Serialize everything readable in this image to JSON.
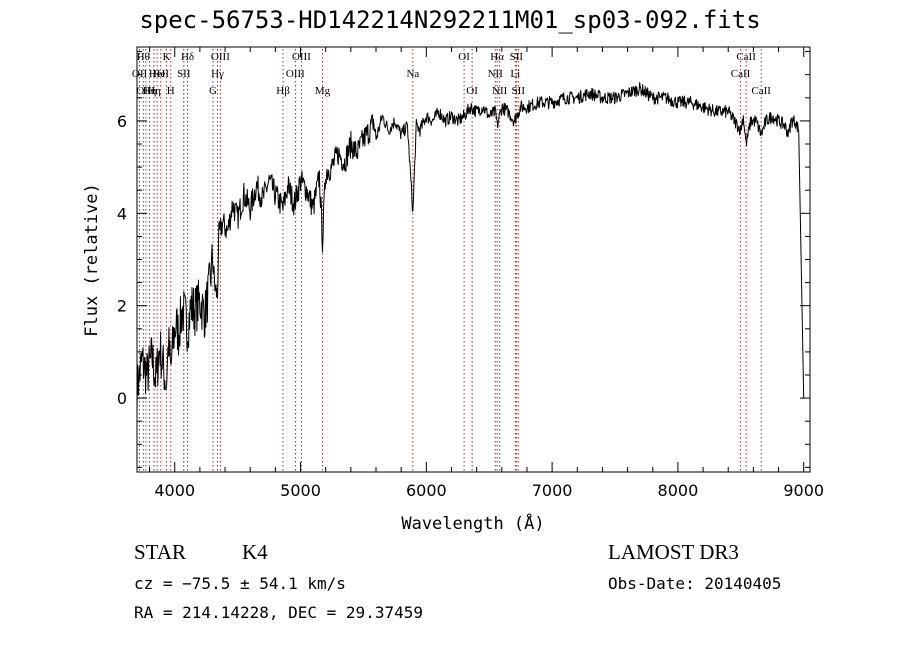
{
  "chart_data": {
    "type": "line",
    "title": "spec-56753-HD142214N292211M01_sp03-092.fits",
    "xlabel": "Wavelength (Å)",
    "ylabel": "Flux (relative)",
    "xlim": [
      3700,
      9050
    ],
    "ylim": [
      -1.6,
      7.6
    ],
    "xticks": [
      4000,
      5000,
      6000,
      7000,
      8000,
      9000
    ],
    "yticks": [
      0,
      2,
      4,
      6
    ],
    "grid": false,
    "series": [
      {
        "name": "spectrum",
        "x": [
          3700,
          3740,
          3780,
          3820,
          3850,
          3880,
          3900,
          3933,
          3950,
          3968,
          3990,
          4010,
          4030,
          4060,
          4080,
          4102,
          4130,
          4160,
          4200,
          4240,
          4280,
          4300,
          4320,
          4340,
          4350,
          4380,
          4420,
          4460,
          4500,
          4550,
          4600,
          4650,
          4700,
          4750,
          4800,
          4861,
          4900,
          4950,
          5000,
          5050,
          5100,
          5150,
          5175,
          5200,
          5250,
          5300,
          5350,
          5400,
          5450,
          5500,
          5550,
          5580,
          5600,
          5650,
          5700,
          5750,
          5800,
          5850,
          5893,
          5920,
          5950,
          6000,
          6050,
          6100,
          6150,
          6200,
          6250,
          6300,
          6350,
          6400,
          6450,
          6500,
          6550,
          6563,
          6600,
          6650,
          6700,
          6750,
          6800,
          6900,
          7000,
          7100,
          7200,
          7300,
          7400,
          7500,
          7600,
          7700,
          7800,
          7900,
          8000,
          8100,
          8200,
          8300,
          8400,
          8450,
          8498,
          8520,
          8542,
          8580,
          8620,
          8662,
          8700,
          8750,
          8800,
          8850,
          8880,
          8900,
          8930,
          8960,
          9000
        ],
        "values": [
          0.2,
          0.8,
          0.5,
          0.9,
          0.4,
          1.1,
          0.8,
          0.3,
          1.2,
          0.6,
          1.3,
          1.6,
          1.4,
          1.9,
          1.8,
          1.5,
          2.0,
          1.9,
          2.1,
          1.8,
          2.5,
          3.0,
          2.4,
          2.2,
          3.5,
          3.8,
          3.6,
          4.2,
          3.9,
          4.4,
          4.1,
          4.6,
          4.3,
          4.7,
          4.4,
          4.1,
          4.6,
          4.2,
          4.7,
          4.5,
          4.1,
          4.8,
          3.4,
          4.9,
          5.0,
          5.3,
          5.1,
          5.5,
          5.3,
          5.6,
          5.8,
          6.0,
          5.6,
          6.1,
          5.8,
          6.0,
          5.7,
          5.9,
          4.0,
          5.9,
          5.8,
          6.1,
          6.0,
          6.2,
          6.0,
          6.1,
          6.0,
          6.1,
          6.3,
          6.2,
          6.3,
          6.1,
          6.2,
          5.9,
          6.3,
          6.2,
          6.0,
          6.3,
          6.3,
          6.4,
          6.4,
          6.5,
          6.5,
          6.6,
          6.5,
          6.5,
          6.6,
          6.7,
          6.5,
          6.5,
          6.4,
          6.4,
          6.3,
          6.2,
          6.2,
          6.0,
          5.8,
          6.1,
          5.5,
          6.0,
          6.0,
          5.7,
          6.0,
          6.1,
          6.0,
          5.9,
          5.7,
          6.0,
          6.0,
          5.8,
          0.0
        ]
      }
    ],
    "lines": [
      {
        "x": 3720,
        "label": "OII",
        "row": 2
      },
      {
        "x": 3750,
        "label": "Hθ",
        "row": 1
      },
      {
        "x": 3770,
        "label": "OIII",
        "row": 3
      },
      {
        "x": 3800,
        "label": "Hη",
        "row": 3
      },
      {
        "x": 3835,
        "label": "Hη",
        "row": 3
      },
      {
        "x": 3860,
        "label": "HeI",
        "row": 2
      },
      {
        "x": 3889,
        "label": "HeI",
        "row": 2
      },
      {
        "x": 3934,
        "label": "K",
        "row": 1
      },
      {
        "x": 3968,
        "label": "H",
        "row": 3
      },
      {
        "x": 4102,
        "label": "Hδ",
        "row": 1
      },
      {
        "x": 4072,
        "label": "SII",
        "row": 2
      },
      {
        "x": 4304,
        "label": "G",
        "row": 3
      },
      {
        "x": 4340,
        "label": "Hγ",
        "row": 2
      },
      {
        "x": 4363,
        "label": "OIII",
        "row": 1
      },
      {
        "x": 4861,
        "label": "Hβ",
        "row": 3
      },
      {
        "x": 4959,
        "label": "OIII",
        "row": 2
      },
      {
        "x": 5007,
        "label": "OIII",
        "row": 1
      },
      {
        "x": 5175,
        "label": "Mg",
        "row": 3
      },
      {
        "x": 5893,
        "label": "Na",
        "row": 2
      },
      {
        "x": 6300,
        "label": "OI",
        "row": 1
      },
      {
        "x": 6364,
        "label": "OI",
        "row": 3
      },
      {
        "x": 6548,
        "label": "NII",
        "row": 2
      },
      {
        "x": 6563,
        "label": "Hα",
        "row": 1
      },
      {
        "x": 6583,
        "label": "NII",
        "row": 3
      },
      {
        "x": 6707,
        "label": "Li",
        "row": 2
      },
      {
        "x": 6716,
        "label": "SII",
        "row": 1
      },
      {
        "x": 6731,
        "label": "SII",
        "row": 3
      },
      {
        "x": 8498,
        "label": "CaII",
        "row": 2
      },
      {
        "x": 8542,
        "label": "CaII",
        "row": 1
      },
      {
        "x": 8662,
        "label": "CaII",
        "row": 3
      }
    ]
  },
  "info": {
    "class": "STAR",
    "subclass": "K4",
    "survey": "LAMOST DR3",
    "cz": "cz = −75.5 ± 54.1 km/s",
    "obs_date": "Obs-Date: 20140405",
    "radec": "RA = 214.14228, DEC =  29.37459"
  },
  "colors": {
    "spectrum": "#000000",
    "line_markers": "#b22222"
  }
}
